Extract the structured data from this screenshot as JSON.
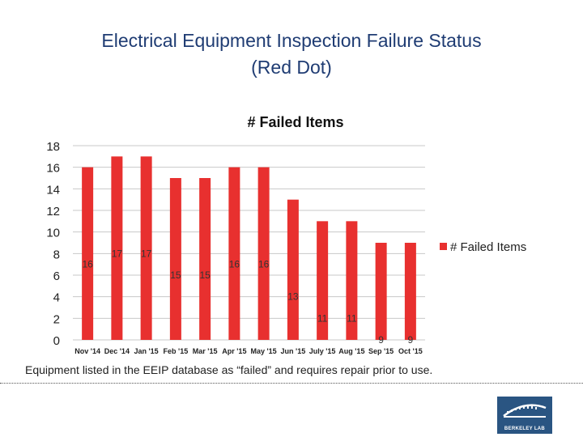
{
  "slide": {
    "title_line1": "Electrical Equipment Inspection Failure Status",
    "title_line2": "(Red Dot)",
    "caption": "Equipment listed in the EEIP database as “failed” and requires repair prior to use.",
    "logo_text": "BERKELEY LAB"
  },
  "chart_data": {
    "type": "bar",
    "title": "# Failed Items",
    "categories": [
      "Nov '14",
      "Dec '14",
      "Jan '15",
      "Feb '15",
      "Mar '15",
      "Apr '15",
      "May '15",
      "Jun '15",
      "July '15",
      "Aug '15",
      "Sep '15",
      "Oct '15"
    ],
    "series": [
      {
        "name": "# Failed Items",
        "color": "#e8302f",
        "values": [
          16,
          17,
          17,
          15,
          15,
          16,
          16,
          13,
          11,
          11,
          9,
          9
        ]
      }
    ],
    "ylim": [
      0,
      18
    ],
    "yticks": [
      0,
      2,
      4,
      6,
      8,
      10,
      12,
      14,
      16,
      18
    ],
    "grid": true,
    "legend": "right",
    "data_labels": true
  }
}
